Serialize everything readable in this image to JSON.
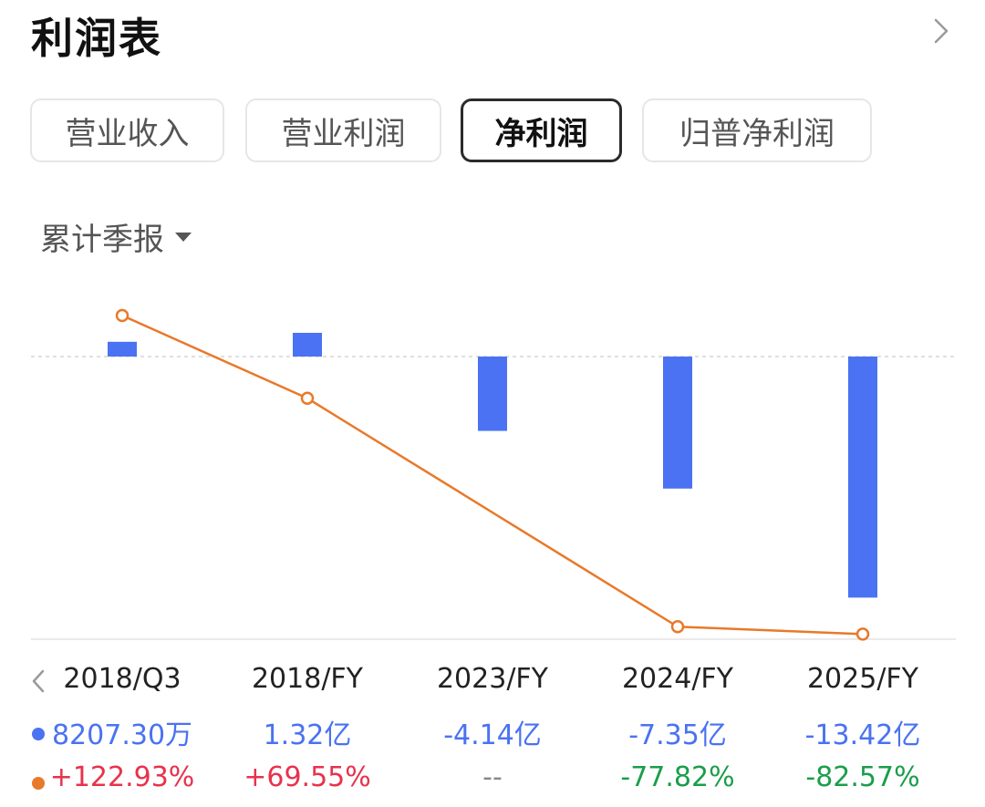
{
  "header": {
    "title": "利润表"
  },
  "tabs": [
    {
      "label": "营业收入",
      "active": false
    },
    {
      "label": "营业利润",
      "active": false
    },
    {
      "label": "净利润",
      "active": true
    },
    {
      "label": "归普净利润",
      "active": false
    }
  ],
  "period_selector": {
    "label": "累计季报"
  },
  "colors": {
    "bar": "#4a72f2",
    "line": "#e8792a",
    "positive": "#e8324d",
    "negative": "#1a9e4a",
    "neutral": "#888888"
  },
  "chart_data": {
    "type": "bar",
    "categories": [
      "2018/Q3",
      "2018/FY",
      "2023/FY",
      "2024/FY",
      "2025/FY"
    ],
    "series": [
      {
        "kind": "bar",
        "values": [
          0.82073,
          1.32,
          -4.14,
          -7.35,
          -13.42
        ],
        "display": [
          "8207.30万",
          "1.32亿",
          "-4.14亿",
          "-7.35亿",
          "-13.42亿"
        ],
        "unit": "亿"
      },
      {
        "kind": "line",
        "values": [
          122.93,
          69.55,
          null,
          -77.82,
          -82.57
        ],
        "display": [
          "+122.93%",
          "+69.55%",
          "--",
          "-77.82%",
          "-82.57%"
        ],
        "unit": "%"
      }
    ],
    "baseline": 0
  }
}
